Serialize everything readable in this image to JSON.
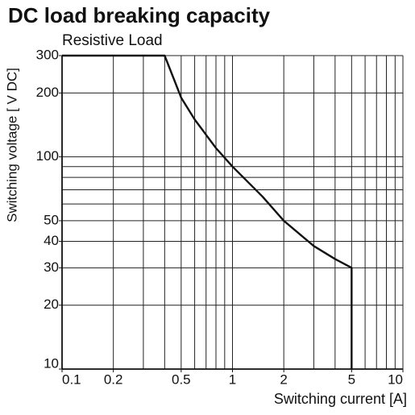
{
  "chart_data": {
    "type": "line",
    "title": "DC load breaking capacity",
    "subtitle": "Resistive Load",
    "x_label": "Switching current [A]",
    "y_label": "Switching voltage [ V DC]",
    "x_scale": "log",
    "y_scale": "log",
    "grid": true,
    "xlim": [
      0.1,
      10
    ],
    "ylim": [
      10,
      300
    ],
    "xticks": [
      0.1,
      0.2,
      0.5,
      1,
      2,
      5,
      10
    ],
    "yticks": [
      10,
      20,
      30,
      40,
      50,
      100,
      200,
      300
    ],
    "xgrid": [
      0.1,
      0.2,
      0.3,
      0.4,
      0.5,
      0.6,
      0.7,
      0.8,
      0.9,
      1,
      2,
      3,
      4,
      5,
      6,
      7,
      8,
      9,
      10
    ],
    "ygrid": [
      10,
      20,
      30,
      40,
      50,
      60,
      70,
      80,
      90,
      100,
      200,
      300
    ],
    "series": [
      {
        "color": "#111111",
        "x": [
          0.1,
          0.4,
          0.5,
          0.6,
          0.8,
          1,
          1.5,
          2,
          3,
          4,
          5,
          5
        ],
        "values": [
          300,
          300,
          190,
          150,
          110,
          90,
          65,
          50,
          38,
          33,
          30,
          10
        ]
      }
    ]
  }
}
